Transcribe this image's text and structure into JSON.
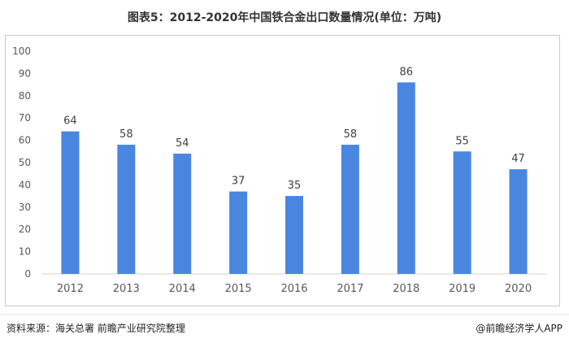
{
  "title": "图表5：2012-2020年中国铁合金出口数量情况(单位：万吨)",
  "footer": {
    "source": "资料来源：海关总署 前瞻产业研究院整理",
    "brand": "@前瞻经济学人APP"
  },
  "colors": {
    "bar": "#4a86e0",
    "axis": "#d0d0d0",
    "text": "#595959"
  },
  "chart_data": {
    "type": "bar",
    "title": "图表5：2012-2020年中国铁合金出口数量情况(单位：万吨)",
    "categories": [
      "2012",
      "2013",
      "2014",
      "2015",
      "2016",
      "2017",
      "2018",
      "2019",
      "2020"
    ],
    "values": [
      64,
      58,
      54,
      37,
      35,
      58,
      86,
      55,
      47
    ],
    "ylim": [
      0,
      100
    ],
    "yticks": [
      0,
      10,
      20,
      30,
      40,
      50,
      60,
      70,
      80,
      90,
      100
    ],
    "grid": false,
    "legend": "none",
    "data_labels": true
  }
}
